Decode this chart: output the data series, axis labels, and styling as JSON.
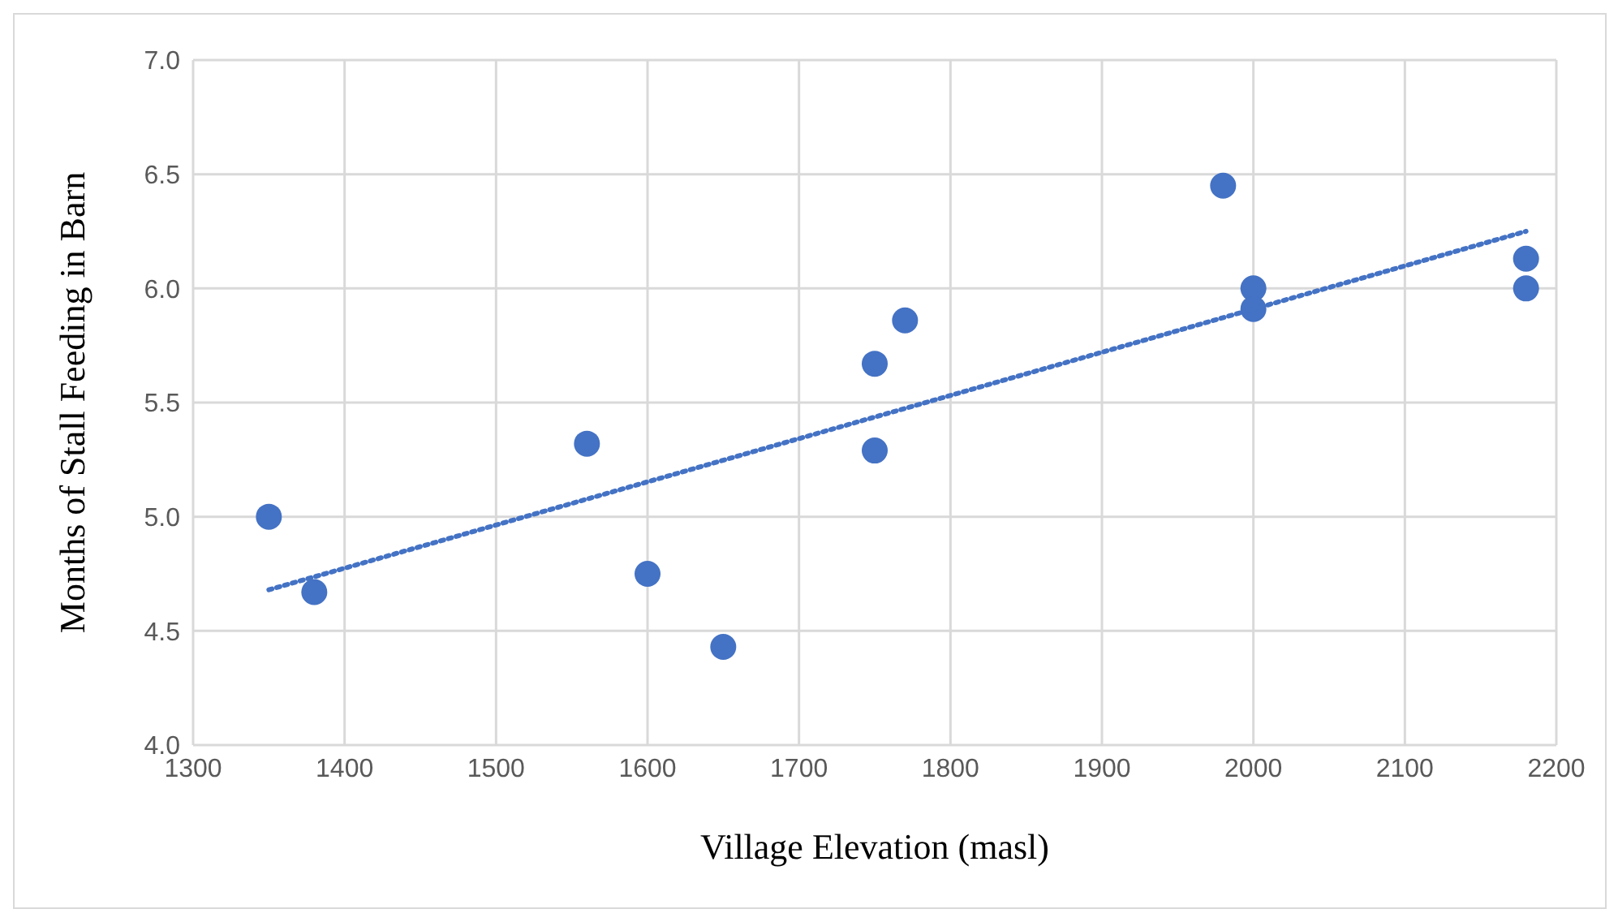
{
  "chart_data": {
    "type": "scatter",
    "xlabel": "Village Elevation (masl)",
    "ylabel": "Months of Stall Feeding in Barn",
    "xlim": [
      1300,
      2200
    ],
    "xticks": [
      1300,
      1400,
      1500,
      1600,
      1700,
      1800,
      1900,
      2000,
      2100,
      2200
    ],
    "ylim": [
      4,
      7
    ],
    "yticks": [
      {
        "value": 4,
        "label": "4.0"
      },
      {
        "value": 4.5,
        "label": "4.5"
      },
      {
        "value": 5,
        "label": "5.0"
      },
      {
        "value": 5.5,
        "label": "5.5"
      },
      {
        "value": 6,
        "label": "6.0"
      },
      {
        "value": 6.5,
        "label": "6.5"
      },
      {
        "value": 7,
        "label": "7.0"
      }
    ],
    "grid": true,
    "legend": false,
    "series": [
      {
        "type": "scatter",
        "color": "#4472c4",
        "marker": "circle",
        "x": [
          1350,
          1380,
          1560,
          1600,
          1650,
          1750,
          1750,
          1770,
          1980,
          2000,
          2000,
          2180,
          2180
        ],
        "values": [
          5.0,
          4.67,
          5.32,
          4.75,
          4.43,
          5.67,
          5.29,
          5.86,
          6.45,
          6.0,
          5.91,
          6.13,
          6.0
        ]
      },
      {
        "type": "line",
        "color": "#4472c4",
        "marker": "none",
        "line_style": "dotted",
        "x": [
          1350,
          2180
        ],
        "values": [
          4.68,
          6.25
        ]
      }
    ]
  }
}
